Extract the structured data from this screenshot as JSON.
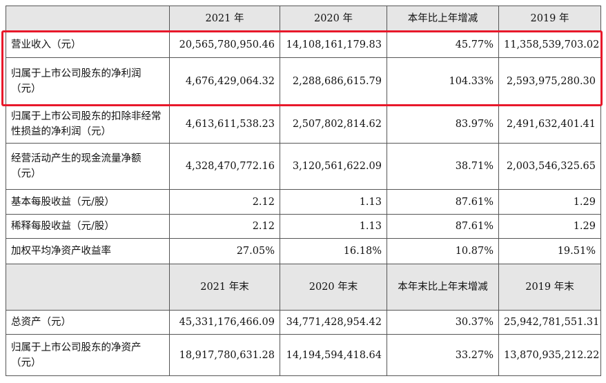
{
  "table": {
    "header1": [
      "",
      "2021 年",
      "2020 年",
      "本年比上年增减",
      "2019 年"
    ],
    "rows1": [
      {
        "label": "营业收入（元）",
        "values": [
          "20,565,780,950.46",
          "14,108,161,179.83",
          "45.77%",
          "11,358,539,703.02"
        ]
      },
      {
        "label": "归属于上市公司股东的净利润（元）",
        "values": [
          "4,676,429,064.32",
          "2,288,686,615.79",
          "104.33%",
          "2,593,975,280.30"
        ]
      },
      {
        "label": "归属于上市公司股东的扣除非经常性损益的净利润（元）",
        "values": [
          "4,613,611,538.23",
          "2,507,802,814.62",
          "83.97%",
          "2,491,632,401.41"
        ]
      },
      {
        "label": "经营活动产生的现金流量净额（元）",
        "values": [
          "4,328,470,772.16",
          "3,120,561,622.09",
          "38.71%",
          "2,003,546,325.65"
        ]
      },
      {
        "label": "基本每股收益（元/股）",
        "values": [
          "2.12",
          "1.13",
          "87.61%",
          "1.29"
        ]
      },
      {
        "label": "稀释每股收益（元/股）",
        "values": [
          "2.12",
          "1.13",
          "87.61%",
          "1.29"
        ]
      },
      {
        "label": "加权平均净资产收益率",
        "values": [
          "27.05%",
          "16.18%",
          "10.87%",
          "19.51%"
        ]
      }
    ],
    "header2": [
      "",
      "2021 年末",
      "2020 年末",
      "本年末比上年末增减",
      "2019 年末"
    ],
    "rows2": [
      {
        "label": "总资产（元）",
        "values": [
          "45,331,176,466.09",
          "34,771,428,954.42",
          "30.37%",
          "25,942,781,551.31"
        ]
      },
      {
        "label": "归属于上市公司股东的净资产（元）",
        "values": [
          "18,917,780,631.28",
          "14,194,594,418.64",
          "33.27%",
          "13,870,935,212.22"
        ]
      }
    ]
  },
  "highlight_color": "#e8182a"
}
